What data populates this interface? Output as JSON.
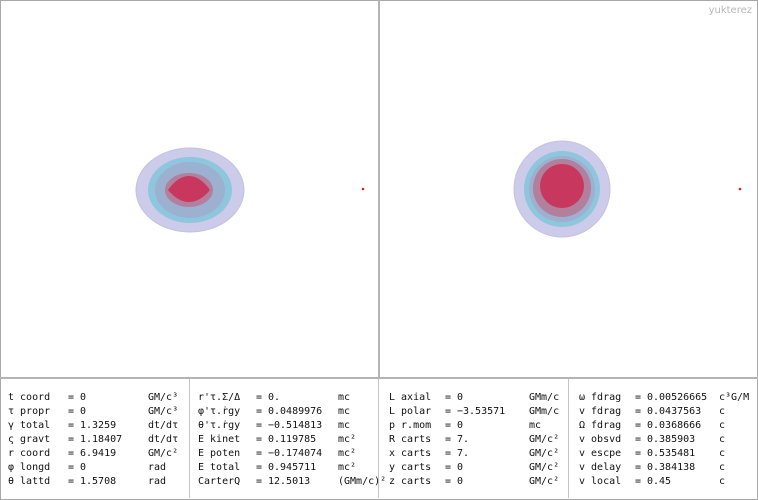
{
  "watermark": "yukterez",
  "colors": {
    "background": "#ffffff",
    "outer_shell": "#c8c8e8",
    "middle_shell": "#8cc4dc",
    "inner_shell": "#b27f9c",
    "core": "#c8385e",
    "marker": "#e02020"
  },
  "panels": [
    {
      "rows": [
        {
          "label": "t coord",
          "value": "0",
          "unit": "GM/c³"
        },
        {
          "label": "τ propr",
          "value": "0",
          "unit": "GM/c³"
        },
        {
          "label": "γ total",
          "value": "1.3259",
          "unit": "dt/dτ"
        },
        {
          "label": "ς gravt",
          "value": "1.18407",
          "unit": "dt/dτ"
        },
        {
          "label": "r coord",
          "value": "6.9419",
          "unit": "GM/c²"
        },
        {
          "label": "φ longd",
          "value": "0",
          "unit": "rad"
        },
        {
          "label": "θ lattd",
          "value": "1.5708",
          "unit": "rad"
        }
      ]
    },
    {
      "rows": [
        {
          "label": "r'τ.Σ/Δ",
          "value": "0.",
          "unit": "mc"
        },
        {
          "label": "φ'τ.ṙgy",
          "value": "0.0489976",
          "unit": "mc"
        },
        {
          "label": "θ'τ.ṙgy",
          "value": "−0.514813",
          "unit": "mc"
        },
        {
          "label": "E kinet",
          "value": "0.119785",
          "unit": "mc²"
        },
        {
          "label": "E poten",
          "value": "−0.174074",
          "unit": "mc²"
        },
        {
          "label": "E total",
          "value": "0.945711",
          "unit": "mc²"
        },
        {
          "label": "CarterQ",
          "value": "12.5013",
          "unit": "(GMm/c)²"
        }
      ]
    },
    {
      "rows": [
        {
          "label": "L axial",
          "value": "0",
          "unit": "GMm/c"
        },
        {
          "label": "L polar",
          "value": "−3.53571",
          "unit": "GMm/c"
        },
        {
          "label": "p r.mom",
          "value": "0",
          "unit": "mc"
        },
        {
          "label": "R carts",
          "value": "7.",
          "unit": "GM/c²"
        },
        {
          "label": "x carts",
          "value": "7.",
          "unit": "GM/c²"
        },
        {
          "label": "y carts",
          "value": "0",
          "unit": "GM/c²"
        },
        {
          "label": "z carts",
          "value": "0",
          "unit": "GM/c²"
        }
      ]
    },
    {
      "rows": [
        {
          "label": "ω fdrag",
          "value": "0.00526665",
          "unit": "c³G/M"
        },
        {
          "label": "v fdrag",
          "value": "0.0437563",
          "unit": "c"
        },
        {
          "label": "Ω fdrag",
          "value": "0.0368666",
          "unit": "c"
        },
        {
          "label": "v obsvd",
          "value": "0.385903",
          "unit": "c"
        },
        {
          "label": "v escpe",
          "value": "0.535481",
          "unit": "c"
        },
        {
          "label": "v delay",
          "value": "0.384138",
          "unit": "c"
        },
        {
          "label": "v local",
          "value": "0.45",
          "unit": "c"
        }
      ]
    }
  ]
}
